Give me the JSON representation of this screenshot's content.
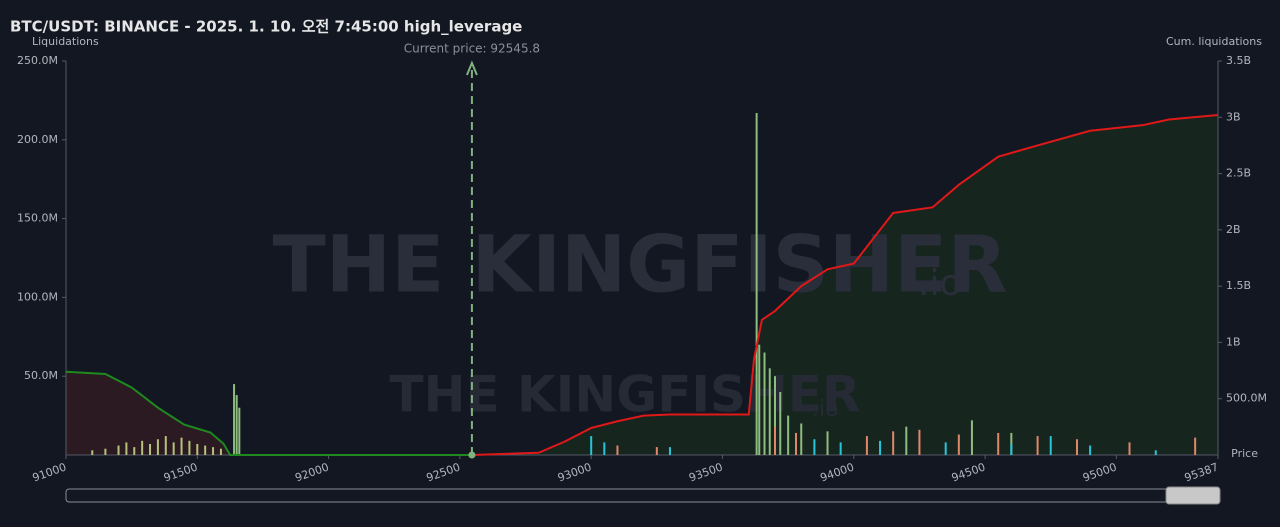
{
  "chart_data": {
    "type": "bar",
    "title": "BTC/USDT: BINANCE - 2025. 1. 10. 오전 7:45:00 high_leverage",
    "ylabel": "Liquidations",
    "y2label": "Cum. liquidations",
    "xlabel": "Price",
    "annotation": "Current price: 92545.8",
    "current_price": 92545.8,
    "watermark": "THE KINGFISHER",
    "watermark_suffix": ".io",
    "xlim": [
      91000,
      95387
    ],
    "xticks": [
      91000,
      91500,
      92000,
      92500,
      93000,
      93500,
      94000,
      94500,
      95000,
      95387
    ],
    "ylim": [
      0,
      250000000
    ],
    "yticks": [
      {
        "value": 50000000,
        "label": "50.0M"
      },
      {
        "value": 100000000,
        "label": "100.0M"
      },
      {
        "value": 150000000,
        "label": "150.0M"
      },
      {
        "value": 200000000,
        "label": "200.0M"
      },
      {
        "value": 250000000,
        "label": "250.0M"
      }
    ],
    "y2lim": [
      0,
      3500000000
    ],
    "y2ticks": [
      {
        "value": 500000000,
        "label": "500.0M"
      },
      {
        "value": 1000000000,
        "label": "1B"
      },
      {
        "value": 1500000000,
        "label": "1.5B"
      },
      {
        "value": 2000000000,
        "label": "2B"
      },
      {
        "value": 2500000000,
        "label": "2.5B"
      },
      {
        "value": 3000000000,
        "label": "3B"
      },
      {
        "value": 3500000000,
        "label": "3.5B"
      }
    ],
    "series": [
      {
        "kind": "bar",
        "color": "#b5c27a",
        "x": [
          91100,
          91150,
          91200,
          91230,
          91260,
          91290,
          91320,
          91350,
          91380,
          91410,
          91440,
          91470,
          91500,
          91530,
          91560,
          91590
        ],
        "values": [
          3000000,
          4000000,
          6000000,
          8000000,
          5000000,
          9000000,
          7000000,
          10000000,
          12000000,
          8000000,
          11000000,
          9000000,
          7000000,
          6000000,
          5000000,
          4000000
        ]
      },
      {
        "kind": "bar",
        "color": "#8fbc7f",
        "x": [
          91640,
          91650,
          91660,
          93630,
          93640,
          93660,
          93680,
          93700,
          93720,
          93750,
          93800,
          93900,
          94200,
          94450,
          94600
        ],
        "values": [
          45000000,
          38000000,
          30000000,
          217000000,
          70000000,
          65000000,
          55000000,
          50000000,
          40000000,
          25000000,
          20000000,
          15000000,
          18000000,
          22000000,
          14000000
        ]
      },
      {
        "kind": "bar",
        "color": "#26c6da",
        "x": [
          93000,
          93050,
          93300,
          93850,
          93950,
          94100,
          94350,
          94600,
          94750,
          94900,
          95150
        ],
        "values": [
          12000000,
          8000000,
          5000000,
          10000000,
          8000000,
          9000000,
          8000000,
          7000000,
          12000000,
          6000000,
          3000000
        ]
      },
      {
        "kind": "bar",
        "color": "#e0876a",
        "x": [
          93100,
          93250,
          93700,
          93780,
          94050,
          94150,
          94250,
          94400,
          94550,
          94700,
          94850,
          95050,
          95300
        ],
        "values": [
          6000000,
          5000000,
          18000000,
          14000000,
          12000000,
          15000000,
          16000000,
          13000000,
          14000000,
          12000000,
          10000000,
          8000000,
          11000000
        ]
      },
      {
        "kind": "line",
        "axis": "y2",
        "color": "#1e8a1e",
        "fill": "#2b1a22",
        "x": [
          91000,
          91150,
          91250,
          91350,
          91450,
          91550,
          91600,
          91625,
          92545.8
        ],
        "values": [
          740000000,
          720000000,
          600000000,
          420000000,
          270000000,
          200000000,
          100000000,
          0,
          0
        ]
      },
      {
        "kind": "line",
        "axis": "y2",
        "color": "#e01818",
        "fill": "#17251f",
        "x": [
          92545.8,
          92800,
          92900,
          93000,
          93100,
          93200,
          93300,
          93600,
          93620,
          93650,
          93700,
          93800,
          93900,
          94000,
          94050,
          94150,
          94300,
          94400,
          94550,
          94700,
          94900,
          95100,
          95200,
          95387
        ],
        "values": [
          0,
          20000000,
          120000000,
          240000000,
          300000000,
          350000000,
          360000000,
          360000000,
          850000000,
          1200000000,
          1280000000,
          1500000000,
          1650000000,
          1700000000,
          1850000000,
          2150000000,
          2200000000,
          2400000000,
          2650000000,
          2750000000,
          2880000000,
          2930000000,
          2980000000,
          3020000000
        ]
      }
    ]
  }
}
